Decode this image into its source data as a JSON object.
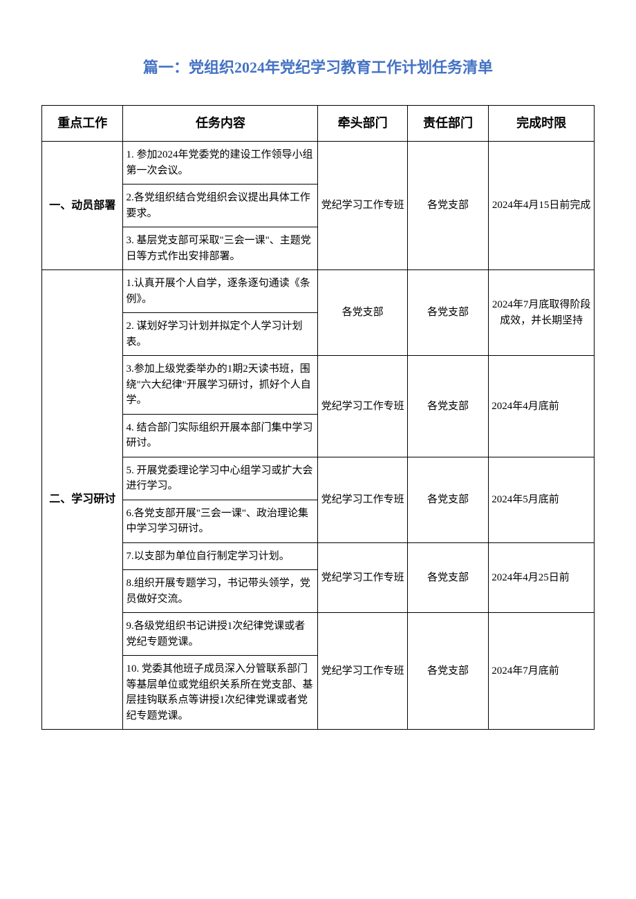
{
  "title": "篇一：党组织2024年党纪学习教育工作计划任务清单",
  "headers": {
    "work": "重点工作",
    "task": "任务内容",
    "lead": "牵头部门",
    "resp": "责任部门",
    "deadline": "完成时限"
  },
  "section1": {
    "label": "一、动员部署",
    "task1": "1. 参加2024年党委党的建设工作领导小组第一次会议。",
    "task2": "2.各党组织结合党组织会议提出具体工作要求。",
    "task3": "3. 基层党支部可采取\"三会一课\"、主题党日等方式作出安排部署。",
    "lead": "党纪学习工作专班",
    "resp": "各党支部",
    "deadline": "2024年4月15日前完成"
  },
  "section2": {
    "label": "二、学习研讨",
    "group1": {
      "task1": "1.认真开展个人自学，逐条逐句通读《条例》。",
      "task2": "2. 谋划好学习计划并拟定个人学习计划表。",
      "lead": "各党支部",
      "resp": "各党支部",
      "deadline": "2024年7月底取得阶段成效，并长期坚持"
    },
    "group2": {
      "task3": "3.参加上级党委举办的1期2天读书班，围绕\"六大纪律\"开展学习研讨，抓好个人自学。",
      "task4": "4. 结合部门实际组织开展本部门集中学习研讨。",
      "lead": "党纪学习工作专班",
      "resp": "各党支部",
      "deadline": "2024年4月底前"
    },
    "group3": {
      "task5": "5. 开展党委理论学习中心组学习或扩大会进行学习。",
      "task6": "6.各党支部开展\"三会一课\"、政治理论集中学习学习研讨。",
      "lead": "党纪学习工作专班",
      "resp": "各党支部",
      "deadline": "2024年5月底前"
    },
    "group4": {
      "task7": "7.以支部为单位自行制定学习计划。",
      "task8": "8.组织开展专题学习，书记带头领学，党员做好交流。",
      "lead": "党纪学习工作专班",
      "resp": "各党支部",
      "deadline": "2024年4月25日前"
    },
    "group5": {
      "task9": "9.各级党组织书记讲授1次纪律党课或者党纪专题党课。",
      "task10": "10. 党委其他班子成员深入分管联系部门等基层单位或党组织关系所在党支部、基层挂钩联系点等讲授1次纪律党课或者党纪专题党课。",
      "lead": "党纪学习工作专班",
      "resp": "各党支部",
      "deadline": "2024年7月底前"
    }
  },
  "style": {
    "title_color": "#4472c4",
    "border_color": "#000000",
    "background_color": "#ffffff",
    "title_fontsize": 22,
    "header_fontsize": 18,
    "cell_fontsize": 15
  }
}
